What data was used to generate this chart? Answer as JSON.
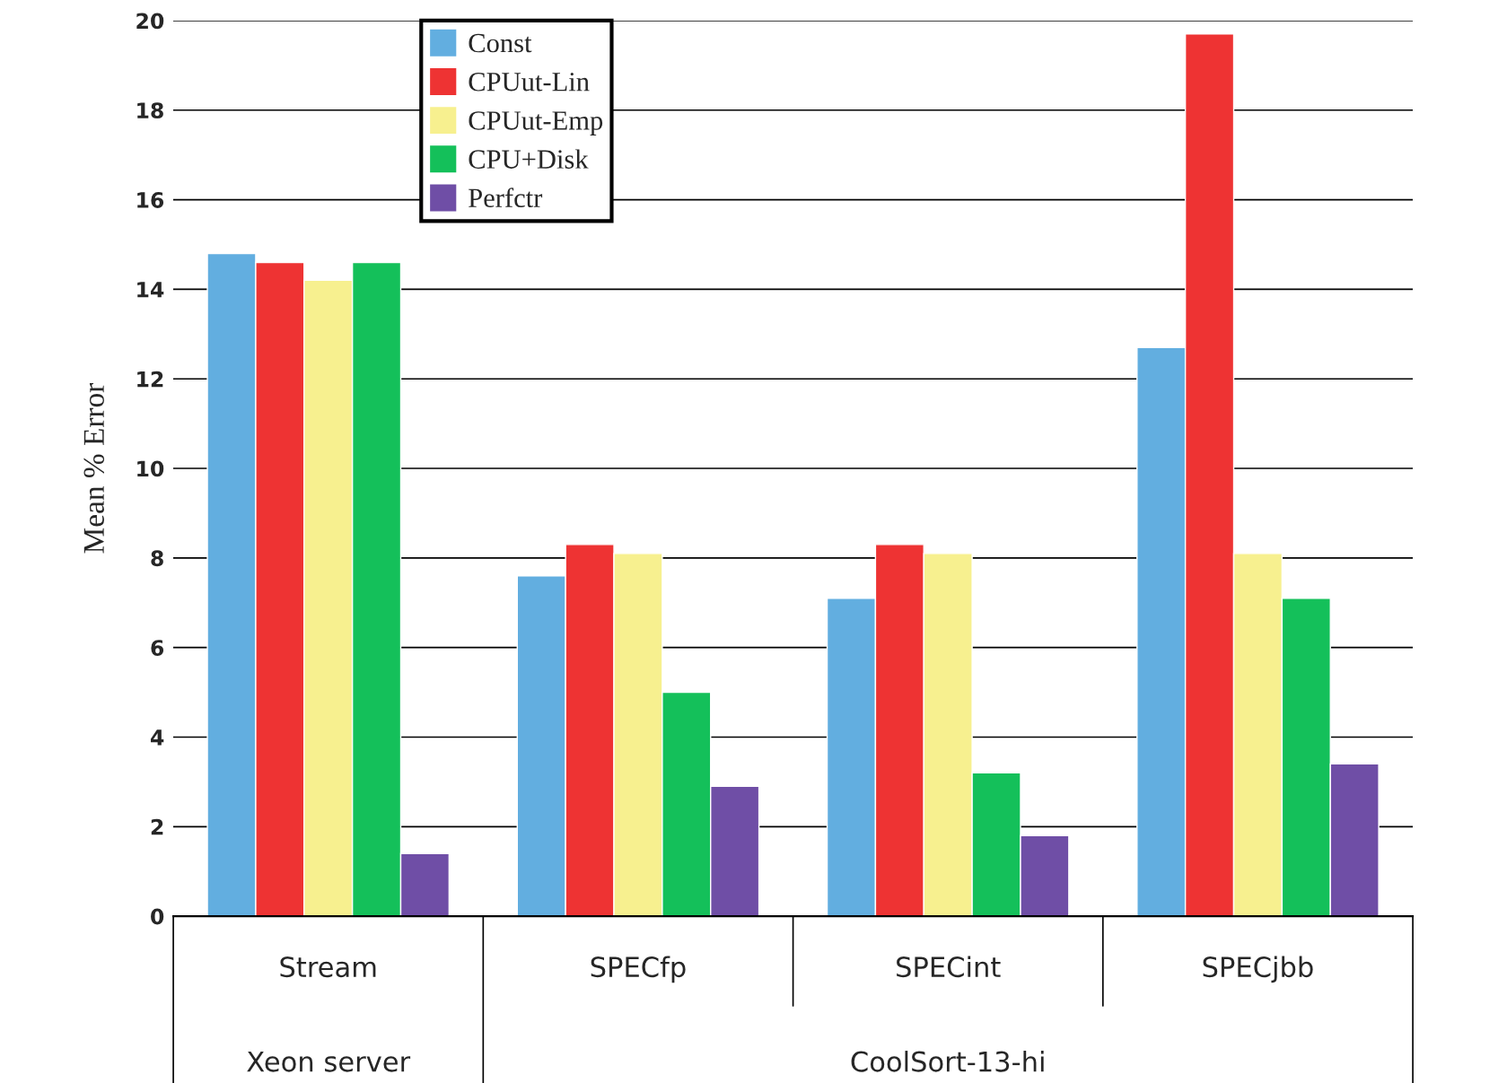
{
  "chart_data": {
    "type": "bar",
    "ylabel": "Mean % Error",
    "categories": [
      "Stream",
      "SPECfp",
      "SPECint",
      "SPECjbb"
    ],
    "series": [
      {
        "name": "Const",
        "color": "#62aee0",
        "values": [
          14.8,
          7.6,
          7.1,
          12.7
        ]
      },
      {
        "name": "CPUut-Lin",
        "color": "#ee3333",
        "values": [
          14.6,
          8.3,
          8.3,
          19.7
        ]
      },
      {
        "name": "CPUut-Emp",
        "color": "#f7f08f",
        "values": [
          14.2,
          8.1,
          8.1,
          8.1
        ]
      },
      {
        "name": "CPU+Disk",
        "color": "#14c05a",
        "values": [
          14.6,
          5.0,
          3.2,
          7.1
        ]
      },
      {
        "name": "Perfctr",
        "color": "#6f4ea6",
        "values": [
          1.4,
          2.9,
          1.8,
          3.4
        ]
      }
    ],
    "ylim": [
      0,
      20
    ],
    "yticks": [
      0,
      2,
      4,
      6,
      8,
      10,
      12,
      14,
      16,
      18,
      20
    ],
    "grid": "y",
    "legend": "top left",
    "annotations": [
      "Xeon server",
      "CoolSort-13-hi"
    ]
  }
}
